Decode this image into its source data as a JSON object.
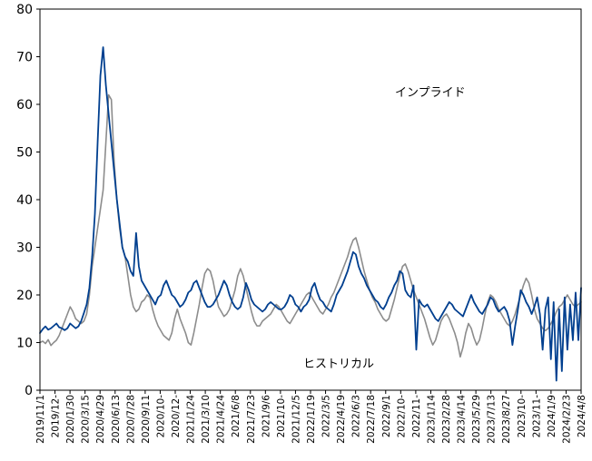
{
  "chart_data": {
    "type": "line",
    "title": "",
    "xlabel": "",
    "ylabel": "",
    "ylim": [
      0,
      80
    ],
    "y_ticks": [
      0,
      10,
      20,
      30,
      40,
      50,
      60,
      70,
      80
    ],
    "x_ticks": [
      "2019/11/1",
      "2019/12-",
      "2020/1/30",
      "2020/3/15",
      "2020/4/29",
      "2020/6/13",
      "2020/7/28",
      "2020/9/11",
      "2020/10-",
      "2020/12-",
      "2021/1/24",
      "2021/3/10",
      "2021/4/24",
      "2021/6/8",
      "2021/7/23",
      "2021/9/6",
      "2021/10-",
      "2021/12/5",
      "2022/1/19",
      "2022/3/5",
      "2022/4/19",
      "2022/6/3",
      "2022/7/18",
      "2022/9/1",
      "2022/10-",
      "2022/11-",
      "2023/1/14",
      "2023/2/28",
      "2023/4/14",
      "2023/5/29",
      "2023/7/13",
      "2023/8/27",
      "2023/10-",
      "2023/11-",
      "2024/1/9",
      "2024/2/23",
      "2024/4/8"
    ],
    "annotations": {
      "implied_label": "インプライド",
      "historical_label": "ヒストリカル"
    },
    "series": [
      {
        "id": "implied",
        "color": "#003f8f",
        "values": [
          12.0,
          12.8,
          13.4,
          12.7,
          13.0,
          13.5,
          14.0,
          13.2,
          13.0,
          12.6,
          13.0,
          14.0,
          13.5,
          13.0,
          13.4,
          14.5,
          16.2,
          18.0,
          21.5,
          28.0,
          37.0,
          52.0,
          66.0,
          72.0,
          64.0,
          58.0,
          52.0,
          46.0,
          40.0,
          35.0,
          30.0,
          28.0,
          27.0,
          25.0,
          24.0,
          33.0,
          26.0,
          23.0,
          22.0,
          21.0,
          20.0,
          19.0,
          18.0,
          19.5,
          20.0,
          22.0,
          23.0,
          21.5,
          20.0,
          19.5,
          18.5,
          17.5,
          18.0,
          19.0,
          20.5,
          21.0,
          22.5,
          23.0,
          21.5,
          20.0,
          18.5,
          17.5,
          17.5,
          18.0,
          19.0,
          20.0,
          21.5,
          23.0,
          22.0,
          20.0,
          18.5,
          17.5,
          17.0,
          17.5,
          19.5,
          22.5,
          21.0,
          19.0,
          18.0,
          17.5,
          17.0,
          16.5,
          17.0,
          18.0,
          18.5,
          18.0,
          17.5,
          17.0,
          17.0,
          17.5,
          18.5,
          20.0,
          19.5,
          18.0,
          17.5,
          16.5,
          17.5,
          18.0,
          19.0,
          21.5,
          22.5,
          20.5,
          19.0,
          18.5,
          17.5,
          17.0,
          16.5,
          18.0,
          20.0,
          21.0,
          22.0,
          23.5,
          25.0,
          27.0,
          29.0,
          28.5,
          26.0,
          24.5,
          23.5,
          22.0,
          21.0,
          20.0,
          19.0,
          18.5,
          17.5,
          17.0,
          18.0,
          19.5,
          20.5,
          22.0,
          23.0,
          25.0,
          24.5,
          21.0,
          20.0,
          19.5,
          22.0,
          8.5,
          19.0,
          18.0,
          17.5,
          18.0,
          17.0,
          16.0,
          15.0,
          14.5,
          15.5,
          16.5,
          17.5,
          18.5,
          18.0,
          17.0,
          16.5,
          16.0,
          15.5,
          17.0,
          18.5,
          20.0,
          18.5,
          17.5,
          16.5,
          16.0,
          17.0,
          18.0,
          19.5,
          19.0,
          17.5,
          16.5,
          17.0,
          17.5,
          16.5,
          14.5,
          9.5,
          13.5,
          17.0,
          21.0,
          20.0,
          18.5,
          17.5,
          16.0,
          17.5,
          19.5,
          16.0,
          8.5,
          17.0,
          19.5,
          6.5,
          18.5,
          2.0,
          17.0,
          4.0,
          19.5,
          8.5,
          18.0,
          10.5,
          20.5,
          10.5,
          21.5
        ]
      },
      {
        "id": "historical",
        "color": "#8c8c8c",
        "values": [
          10.0,
          10.3,
          9.8,
          10.6,
          9.4,
          10.0,
          10.5,
          11.5,
          13.0,
          14.5,
          16.0,
          17.5,
          16.5,
          15.0,
          14.5,
          14.0,
          14.5,
          16.0,
          20.0,
          26.0,
          30.0,
          34.0,
          38.0,
          42.0,
          52.0,
          62.0,
          61.0,
          48.0,
          40.0,
          34.0,
          30.0,
          28.0,
          24.0,
          20.0,
          17.5,
          16.5,
          17.0,
          18.5,
          19.0,
          20.0,
          19.5,
          17.0,
          15.0,
          13.5,
          12.5,
          11.5,
          11.0,
          10.5,
          12.0,
          15.0,
          17.0,
          15.0,
          13.5,
          12.0,
          10.0,
          9.5,
          12.0,
          15.0,
          18.0,
          21.5,
          24.5,
          25.5,
          25.0,
          23.0,
          20.0,
          17.5,
          16.5,
          15.5,
          16.0,
          17.0,
          19.0,
          21.0,
          24.0,
          25.5,
          24.0,
          21.5,
          19.0,
          16.5,
          14.5,
          13.5,
          13.5,
          14.5,
          15.0,
          15.5,
          16.0,
          17.0,
          18.0,
          17.5,
          16.5,
          15.5,
          14.5,
          14.0,
          15.0,
          16.0,
          17.0,
          18.0,
          19.0,
          20.0,
          20.5,
          19.5,
          18.5,
          17.5,
          16.5,
          16.0,
          17.0,
          18.0,
          19.5,
          20.5,
          22.0,
          23.5,
          25.0,
          26.5,
          28.0,
          30.0,
          31.5,
          32.0,
          30.0,
          27.5,
          25.0,
          23.0,
          21.0,
          19.5,
          18.5,
          17.0,
          16.0,
          15.0,
          14.5,
          15.0,
          17.0,
          19.0,
          21.5,
          24.0,
          26.0,
          26.5,
          25.0,
          23.0,
          21.0,
          19.5,
          18.0,
          16.5,
          15.0,
          13.0,
          11.0,
          9.5,
          10.5,
          12.5,
          14.5,
          15.5,
          16.0,
          15.0,
          13.5,
          12.0,
          10.0,
          7.0,
          9.0,
          12.0,
          14.0,
          13.0,
          11.0,
          9.5,
          10.5,
          13.0,
          16.0,
          18.5,
          20.0,
          19.5,
          18.5,
          17.0,
          16.0,
          15.0,
          14.0,
          13.5,
          14.5,
          16.0,
          18.0,
          20.0,
          22.0,
          23.5,
          22.5,
          20.0,
          17.0,
          15.0,
          14.0,
          13.0,
          12.5,
          13.0,
          14.0,
          15.0,
          16.5,
          17.5,
          18.0,
          19.0,
          20.0,
          19.0,
          18.0,
          17.5,
          18.0,
          18.5
        ]
      }
    ]
  }
}
